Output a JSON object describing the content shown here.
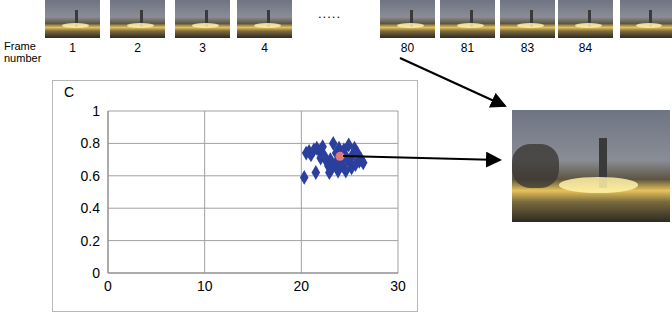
{
  "film_strip": {
    "label": "Frame number",
    "frames": [
      "1",
      "2",
      "3",
      "4",
      "80",
      "81",
      "83",
      "84"
    ],
    "ellipsis": "....."
  },
  "chart_data": {
    "type": "scatter",
    "ylabel": "C",
    "xlim": [
      0,
      30
    ],
    "xticks": [
      0,
      10,
      20,
      30
    ],
    "ylim": [
      0,
      1
    ],
    "yticks": [
      0,
      0.2,
      0.4,
      0.6,
      0.8,
      1
    ],
    "grid": true,
    "marker": "diamond",
    "color": "#2b3f9e",
    "x": [
      20.3,
      20.5,
      20.8,
      21.0,
      21.3,
      21.6,
      21.9,
      22.2,
      22.0,
      22.4,
      22.6,
      22.8,
      23.0,
      23.1,
      23.3,
      23.5,
      23.6,
      23.8,
      23.9,
      24.1,
      24.3,
      24.4,
      24.6,
      24.7,
      24.9,
      25.0,
      25.2,
      25.3,
      25.5,
      25.6,
      25.8,
      26.0,
      26.2,
      26.4,
      21.5,
      22.9
    ],
    "values": [
      0.59,
      0.74,
      0.75,
      0.73,
      0.76,
      0.77,
      0.75,
      0.78,
      0.71,
      0.72,
      0.69,
      0.66,
      0.7,
      0.64,
      0.8,
      0.67,
      0.74,
      0.63,
      0.77,
      0.69,
      0.66,
      0.76,
      0.63,
      0.71,
      0.79,
      0.68,
      0.65,
      0.73,
      0.77,
      0.67,
      0.74,
      0.69,
      0.7,
      0.68,
      0.62,
      0.62
    ],
    "highlight": {
      "x": 24.0,
      "y": 0.72,
      "color": "#e07a7a"
    }
  }
}
